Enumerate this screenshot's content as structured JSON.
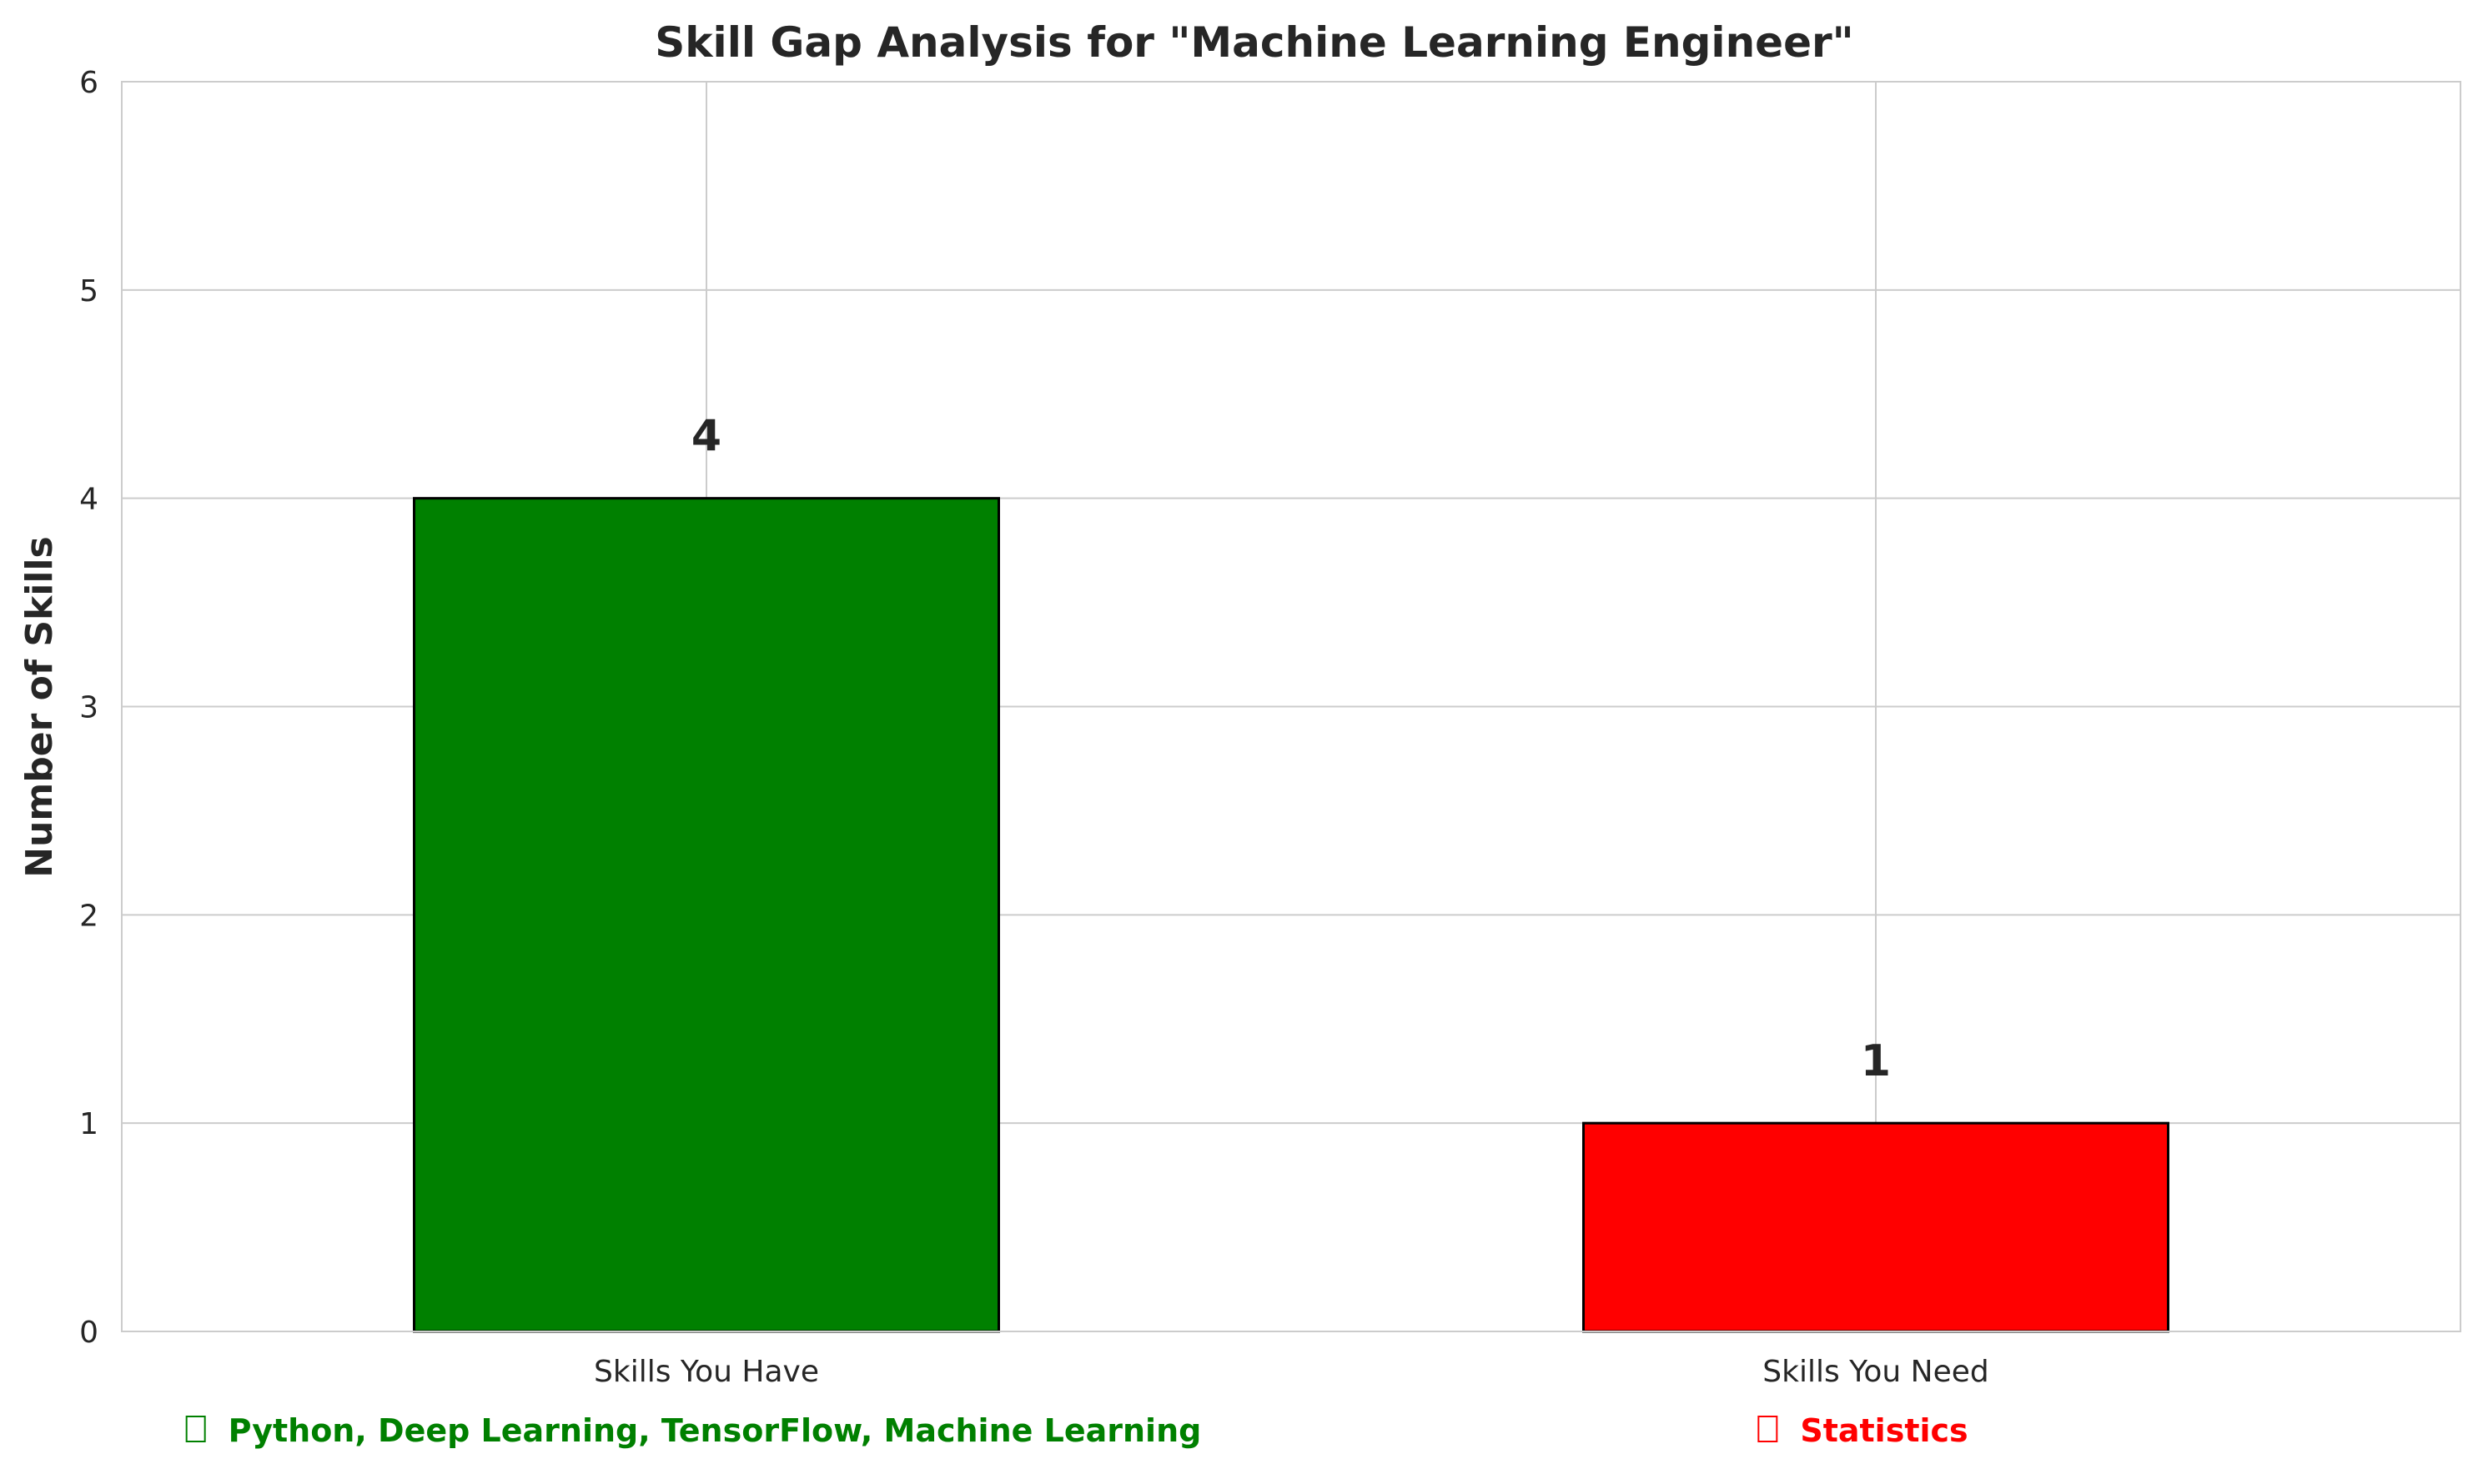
{
  "chart_data": {
    "type": "bar",
    "title": "Skill Gap Analysis for \"Machine Learning Engineer\"",
    "xlabel": "",
    "ylabel": "Number of Skills",
    "categories": [
      "Skills You Have",
      "Skills You Need"
    ],
    "values": [
      4,
      1
    ],
    "data_labels": [
      "4",
      "1"
    ],
    "bar_colors": [
      "#008000",
      "#ff0000"
    ],
    "bar_edge_color": "#000000",
    "ylim": [
      0,
      6
    ],
    "yticks": [
      "0",
      "1",
      "2",
      "3",
      "4",
      "5",
      "6"
    ],
    "grid": true,
    "legend": "none",
    "skill_lists": [
      {
        "text": "Python, Deep Learning, TensorFlow, Machine Learning",
        "color": "#008000"
      },
      {
        "text": "Statistics",
        "color": "#ff0000"
      }
    ]
  }
}
